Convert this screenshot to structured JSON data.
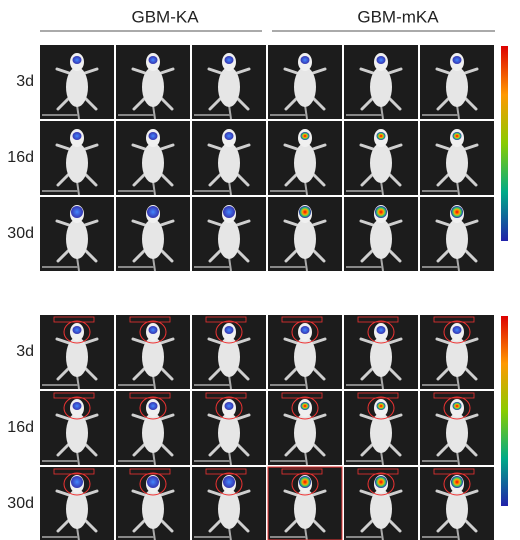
{
  "header": {
    "groups": [
      "GBM-KA",
      "GBM-mKA"
    ]
  },
  "panels": [
    {
      "rows": [
        "3d",
        "16d",
        "30d"
      ]
    },
    {
      "rows": [
        "3d",
        "16d",
        "30d"
      ]
    }
  ]
}
